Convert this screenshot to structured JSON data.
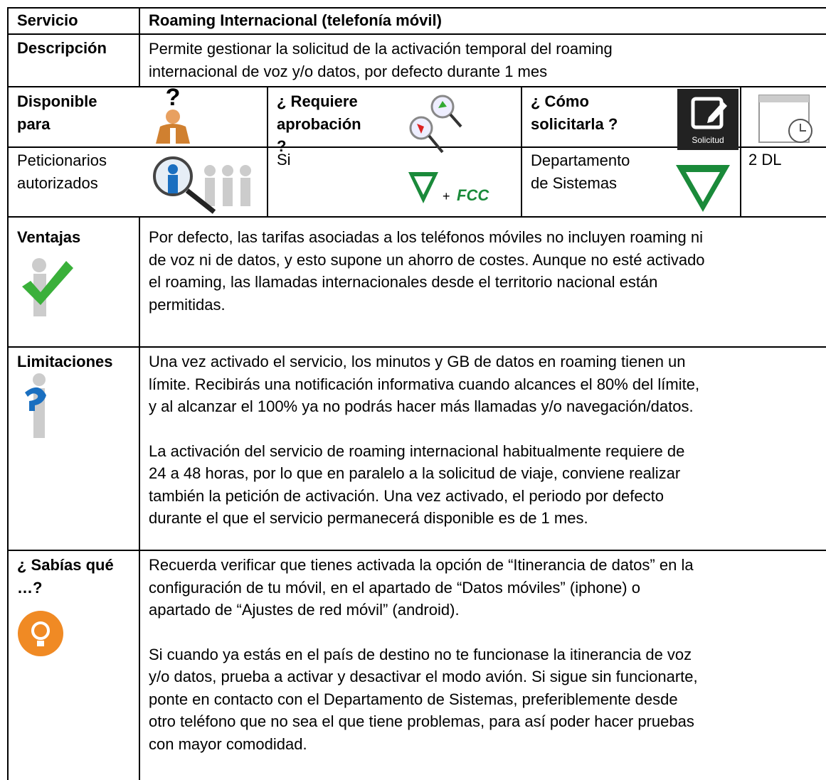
{
  "service": {
    "label": "Servicio",
    "value": "Roaming Internacional (telefonía móvil)"
  },
  "description": {
    "label": "Descripción",
    "lines": [
      "Permite gestionar la solicitud de la activación temporal del roaming",
      "internacional de voz y/o datos, por defecto durante 1 mes"
    ]
  },
  "headers": {
    "available_for": [
      "Disponible",
      "para"
    ],
    "requires_approval": [
      "¿ Requiere",
      "aprobación",
      "?"
    ],
    "how_to_request": [
      "¿ Cómo",
      "solicitarla ?"
    ],
    "request_icon": "Solicitud"
  },
  "values": {
    "available_for": [
      "Peticionarios",
      "autorizados"
    ],
    "requires_approval": "Si",
    "approval_plus": "+",
    "approval_logo": "FCC",
    "how_to_request": [
      "Departamento",
      "de Sistemas"
    ],
    "lead_time": "2 DL"
  },
  "sections": [
    {
      "label": [
        "Ventajas"
      ],
      "paragraphs": [
        [
          "Por defecto, las tarifas asociadas a los teléfonos móviles no incluyen roaming ni",
          "de voz ni de datos, y esto supone un ahorro de costes. Aunque no esté activado",
          "el roaming, las llamadas internacionales desde el territorio nacional están",
          "permitidas."
        ]
      ]
    },
    {
      "label": [
        "Limitaciones"
      ],
      "paragraphs": [
        [
          "Una vez activado el servicio, los minutos y GB de datos en roaming tienen un",
          "límite. Recibirás una notificación informativa cuando alcances el 80% del límite,",
          "y al alcanzar el 100% ya no podrás hacer más llamadas y/o navegación/datos."
        ],
        [
          "La activación del servicio de roaming internacional habitualmente requiere de",
          "24 a 48 horas, por lo que en paralelo a la solicitud de viaje, conviene realizar",
          "también la petición de activación. Una vez activado, el periodo por defecto",
          "durante el que el servicio permanecerá disponible es de 1 mes."
        ]
      ]
    },
    {
      "label": [
        "¿ Sabías qué",
        "…?"
      ],
      "paragraphs": [
        [
          "Recuerda verificar que tienes activada la opción de “Itinerancia de datos” en la",
          "configuración de tu móvil, en el apartado de “Datos móviles” (iphone) o",
          "apartado de “Ajustes de red móvil” (android)."
        ],
        [
          "Si cuando ya estás en el país de destino no te funcionase la itinerancia de voz",
          "y/o datos, prueba a activar y desactivar el modo avión. Si sigue sin funcionarte,",
          "ponte en contacto con el Departamento de Sistemas, preferiblemente desde",
          "otro teléfono que no sea el que tiene problemas, para así poder hacer pruebas",
          "con mayor comodidad."
        ]
      ]
    }
  ]
}
